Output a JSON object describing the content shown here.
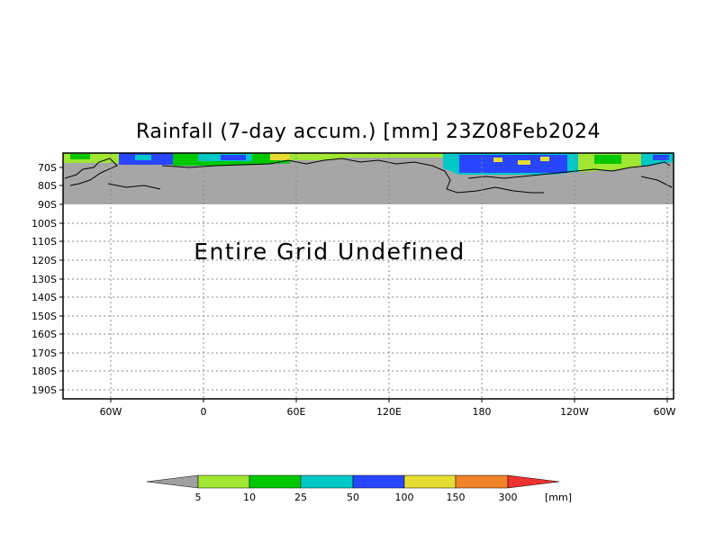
{
  "title": "Rainfall (7-day accum.) [mm] 23Z08Feb2024",
  "undefined_message": "Entire Grid Undefined",
  "y_ticks": [
    "70S",
    "80S",
    "90S",
    "100S",
    "110S",
    "120S",
    "130S",
    "140S",
    "150S",
    "160S",
    "170S",
    "180S",
    "190S"
  ],
  "x_ticks": [
    "60W",
    "0",
    "60E",
    "120E",
    "180",
    "120W",
    "60W"
  ],
  "colorbar": {
    "levels": [
      "5",
      "10",
      "25",
      "50",
      "100",
      "150",
      "300"
    ],
    "unit": "[mm]",
    "colors": [
      "#a0a0a0",
      "#a0e632",
      "#00c800",
      "#00c8c8",
      "#2846ff",
      "#e6dc32",
      "#f08228",
      "#f03232"
    ]
  },
  "map_colors": {
    "undefined": "#a6a6a6",
    "grid": "#8a8a8a"
  }
}
